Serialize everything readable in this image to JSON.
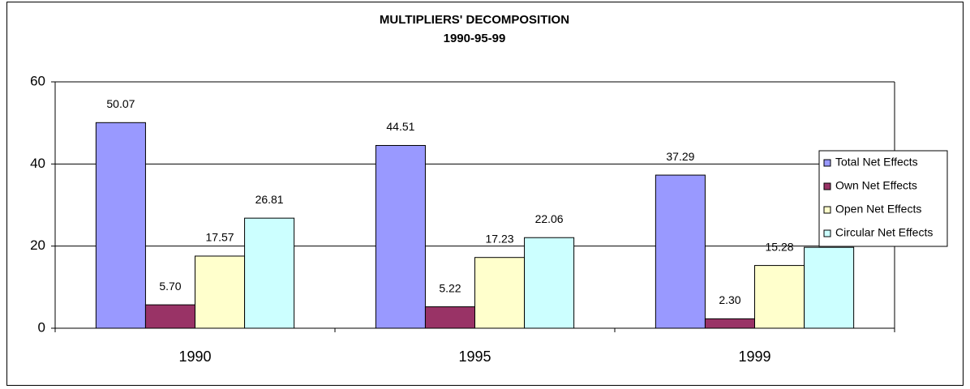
{
  "chart_data": {
    "type": "bar",
    "title": "MULTIPLIERS' DECOMPOSITION",
    "subtitle": "1990-95-99",
    "categories": [
      "1990",
      "1995",
      "1999"
    ],
    "series": [
      {
        "name": "Total Net Effects",
        "color": "#9999ff",
        "values": [
          50.07,
          44.51,
          37.29
        ]
      },
      {
        "name": "Own Net Effects",
        "color": "#993366",
        "values": [
          5.7,
          5.22,
          2.3
        ],
        "value_labels": [
          "5.70",
          "5.22",
          "2.30"
        ]
      },
      {
        "name": "Open Net Effects",
        "color": "#ffffcc",
        "values": [
          17.57,
          17.23,
          15.28
        ]
      },
      {
        "name": "Circular Net Effects",
        "color": "#ccffff",
        "values": [
          26.81,
          22.06,
          19.7
        ]
      }
    ],
    "ylim": [
      0,
      60
    ],
    "yticks": [
      0,
      20,
      40,
      60
    ],
    "grid": true,
    "legend": "right"
  }
}
